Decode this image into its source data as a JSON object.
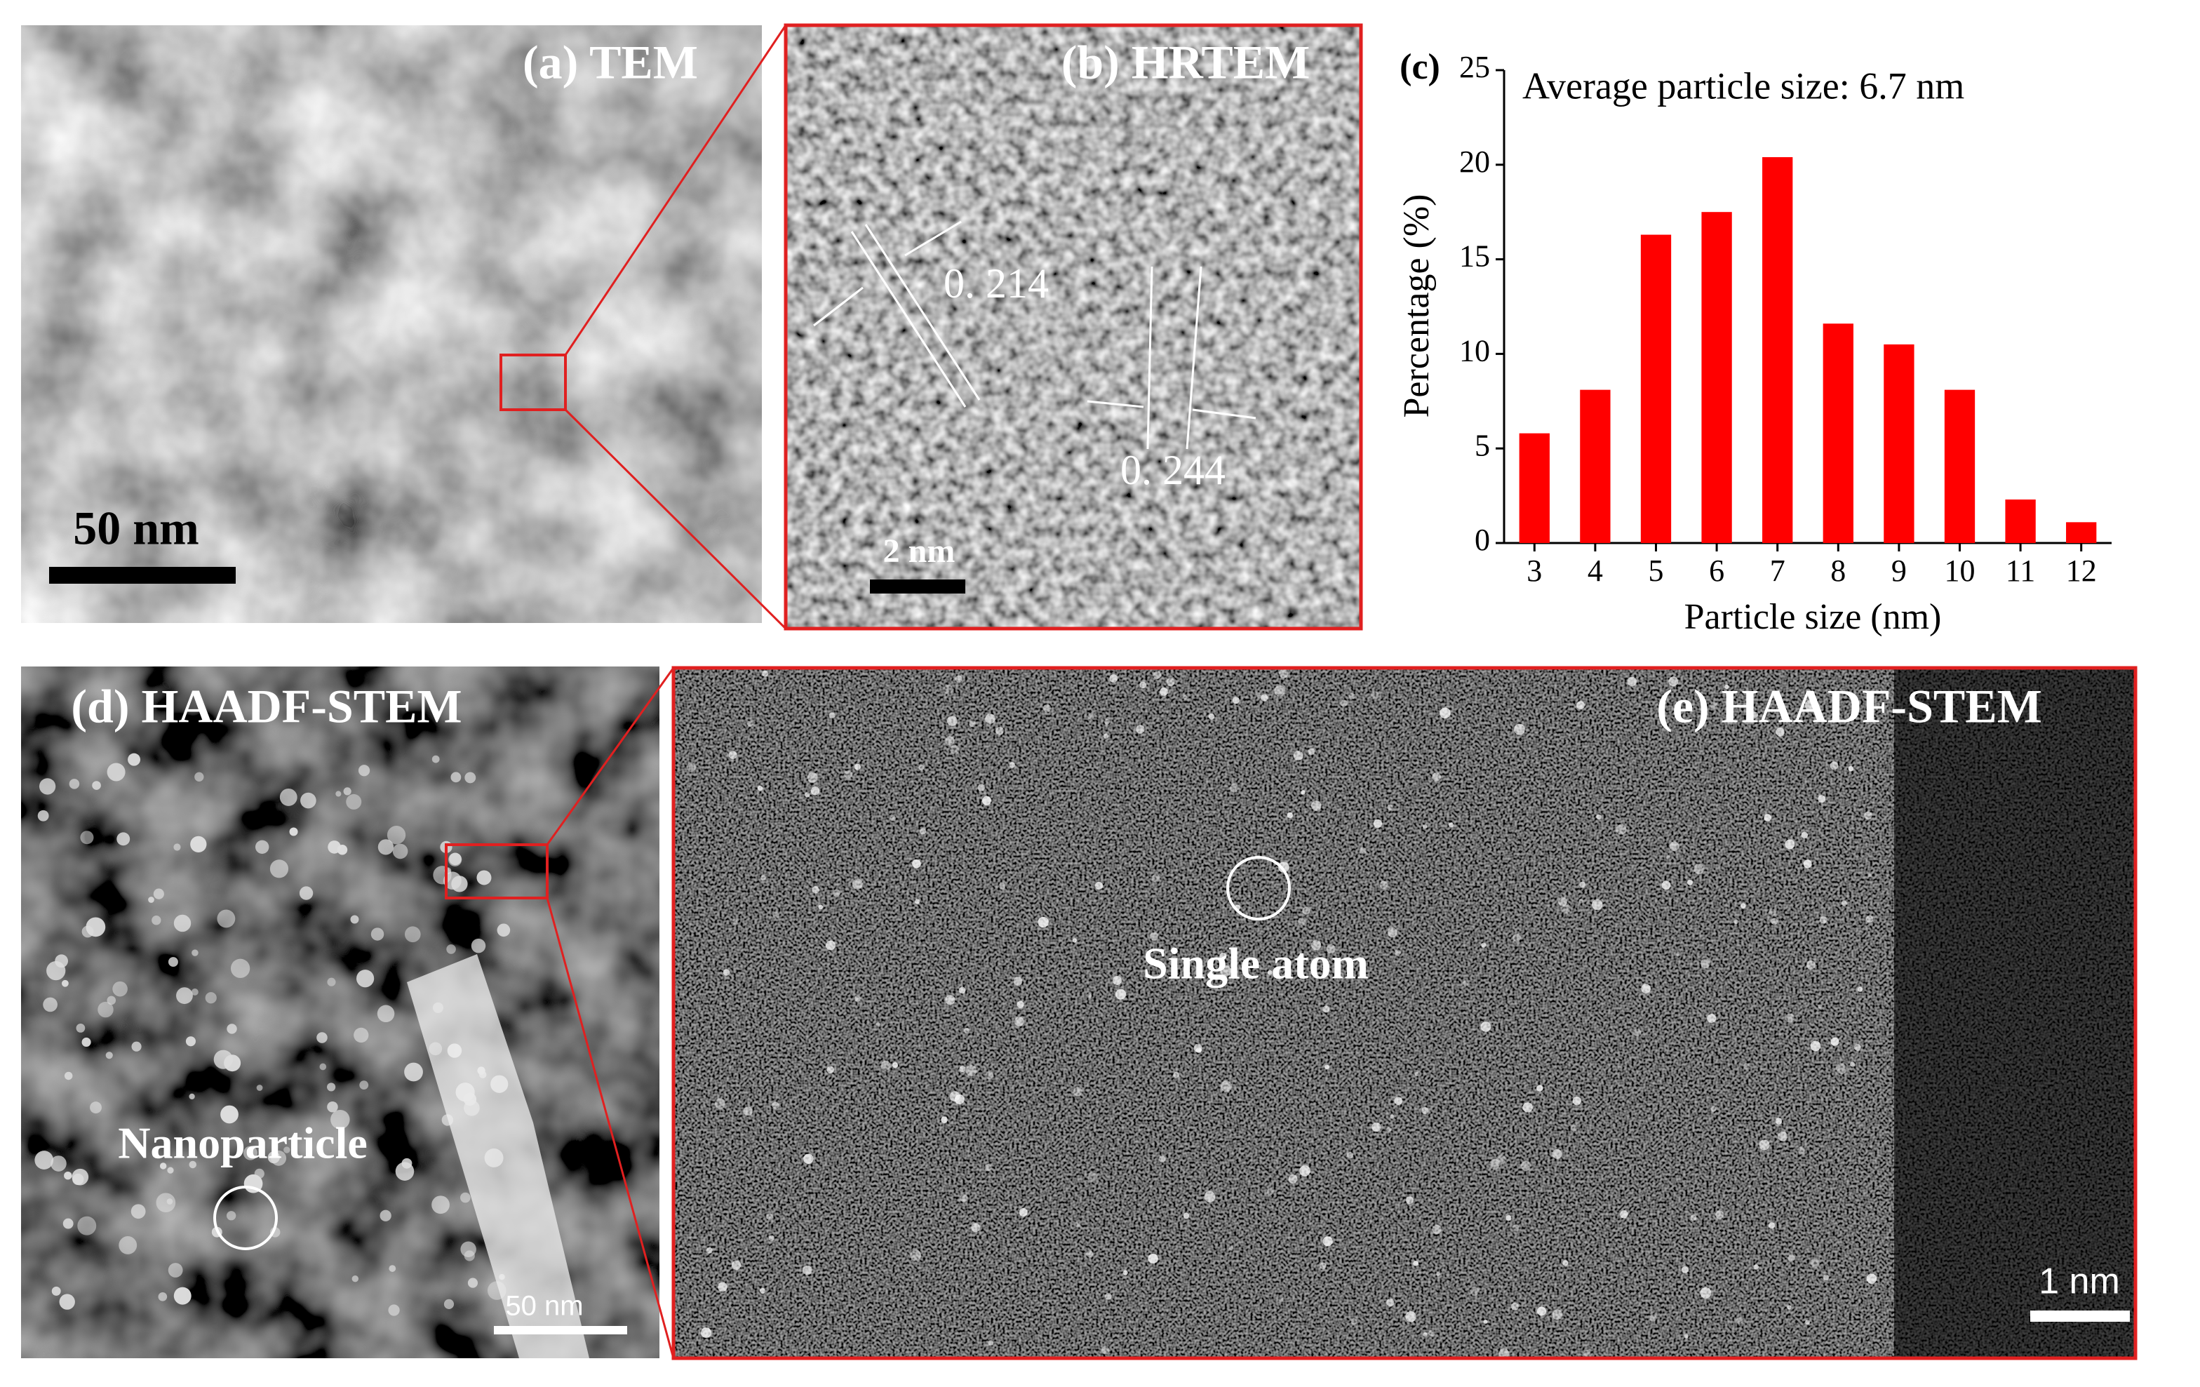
{
  "panels": {
    "a": {
      "label": "(a) TEM",
      "scale_bar": "50 nm"
    },
    "b": {
      "label": "(b) HRTEM",
      "spacings": [
        "0. 214",
        "0. 244"
      ],
      "scale_bar": "2 nm"
    },
    "d": {
      "label": "(d) HAADF-STEM",
      "annotation": "Nanoparticle",
      "scale_bar": "50 nm"
    },
    "e": {
      "label": "(e) HAADF-STEM",
      "annotation": "Single atom",
      "scale_bar": "1 nm"
    }
  },
  "chart_data": {
    "type": "bar",
    "panel_label": "(c)",
    "annotation": "Average particle size: 6.7 nm",
    "x_label": "Particle size (nm)",
    "y_label": "Percentage (%)",
    "categories": [
      "3",
      "4",
      "5",
      "6",
      "7",
      "8",
      "9",
      "10",
      "11",
      "12"
    ],
    "values": [
      5.8,
      8.1,
      16.3,
      17.5,
      20.4,
      11.6,
      10.5,
      8.1,
      2.3,
      1.1
    ],
    "color": "#ff0000",
    "ylim": [
      0,
      25
    ],
    "yticks": [
      0,
      5,
      10,
      15,
      20,
      25
    ]
  }
}
